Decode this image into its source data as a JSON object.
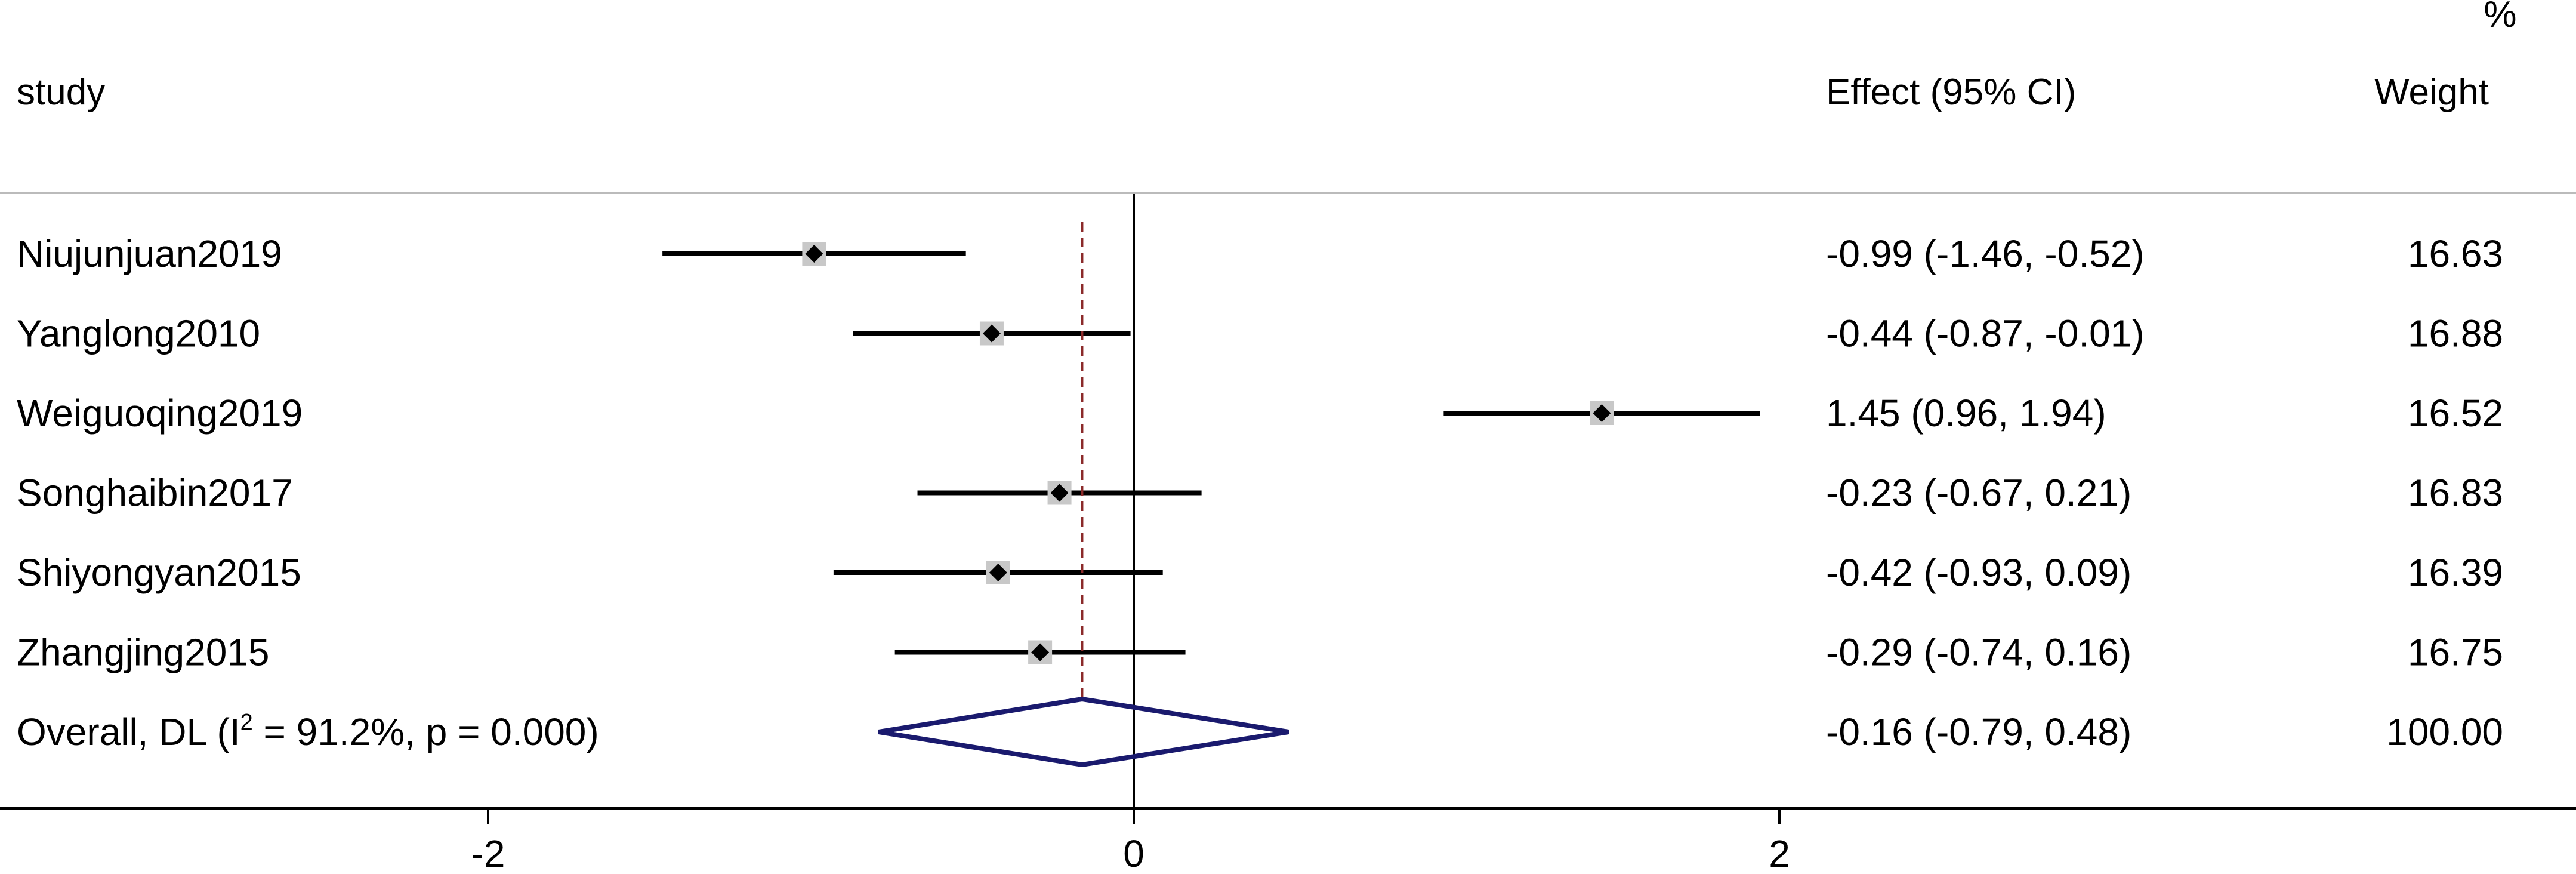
{
  "chart_data": {
    "type": "forest",
    "headers": {
      "study": "study",
      "effect": "Effect (95% CI)",
      "weight_top": "%",
      "weight": "Weight"
    },
    "studies": [
      {
        "name": "Niujunjuan2019",
        "effect": -0.99,
        "lower": -1.46,
        "upper": -0.52,
        "effect_text": "-0.99 (-1.46, -0.52)",
        "weight_text": "16.63"
      },
      {
        "name": "Yanglong2010",
        "effect": -0.44,
        "lower": -0.87,
        "upper": -0.01,
        "effect_text": "-0.44 (-0.87, -0.01)",
        "weight_text": "16.88"
      },
      {
        "name": "Weiguoqing2019",
        "effect": 1.45,
        "lower": 0.96,
        "upper": 1.94,
        "effect_text": "1.45 (0.96, 1.94)",
        "weight_text": "16.52"
      },
      {
        "name": "Songhaibin2017",
        "effect": -0.23,
        "lower": -0.67,
        "upper": 0.21,
        "effect_text": "-0.23 (-0.67, 0.21)",
        "weight_text": "16.83"
      },
      {
        "name": "Shiyongyan2015",
        "effect": -0.42,
        "lower": -0.93,
        "upper": 0.09,
        "effect_text": "-0.42 (-0.93, 0.09)",
        "weight_text": "16.39"
      },
      {
        "name": "Zhangjing2015",
        "effect": -0.29,
        "lower": -0.74,
        "upper": 0.16,
        "effect_text": "-0.29 (-0.74, 0.16)",
        "weight_text": "16.75"
      }
    ],
    "overall": {
      "label_prefix": "Overall, DL (I",
      "label_sup": "2",
      "label_suffix": " = 91.2%, p = 0.000)",
      "effect": -0.16,
      "lower": -0.79,
      "upper": 0.48,
      "effect_text": "-0.16 (-0.79, 0.48)",
      "weight_text": "100.00"
    },
    "x_ticks": [
      -2,
      0,
      2
    ],
    "x_tick_labels": [
      "-2",
      "0",
      "2"
    ],
    "null_line": 0,
    "colors": {
      "ci_line": "#000000",
      "point": "#000000",
      "weight_box": "#c8c8c8",
      "diamond": "#1a1a6e",
      "overall_line": "#8b2a2a",
      "separator": "#bbbbbb"
    }
  }
}
